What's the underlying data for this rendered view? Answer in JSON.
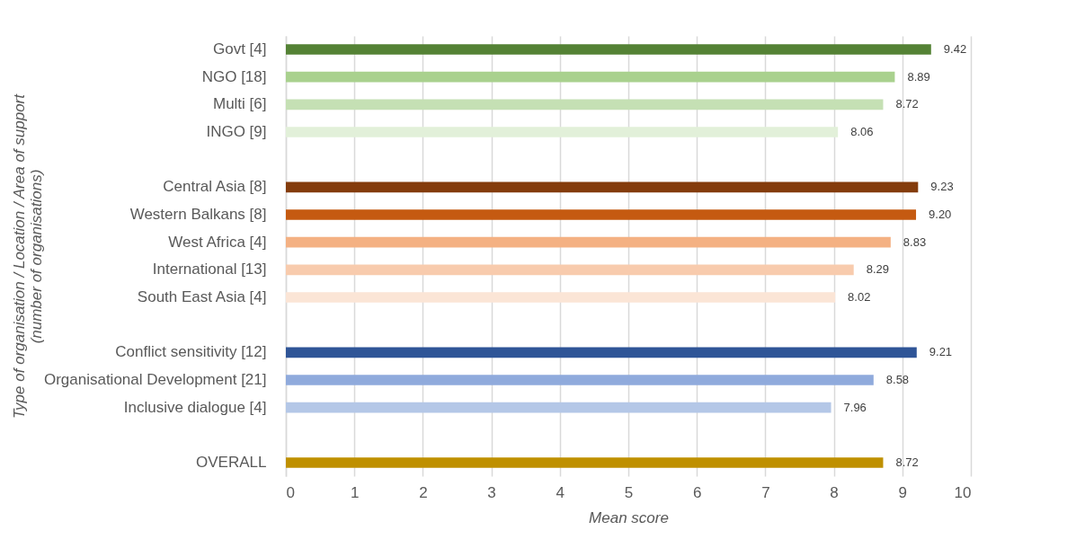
{
  "chart_data": {
    "type": "bar",
    "orientation": "horizontal",
    "xlabel": "Mean score",
    "ylabel": "Type of organisation / Location / Area of support\n(number of organisations)",
    "categories": [
      "Govt [4]",
      "NGO [18]",
      "Multi [6]",
      "INGO [9]",
      null,
      "Central Asia [8]",
      "Western Balkans [8]",
      "West Africa [4]",
      "International [13]",
      "South East Asia [4]",
      null,
      "Conflict sensitivity [12]",
      "Organisational Development [21]",
      "Inclusive dialogue [4]",
      null,
      "OVERALL"
    ],
    "values": [
      9.42,
      8.89,
      8.72,
      8.06,
      null,
      9.23,
      9.2,
      8.83,
      8.29,
      8.02,
      null,
      9.21,
      8.58,
      7.96,
      null,
      8.72
    ],
    "value_labels": [
      "9.42",
      "8.89",
      "8.72",
      "8.06",
      null,
      "9.23",
      "9.20",
      "8.83",
      "8.29",
      "8.02",
      null,
      "9.21",
      "8.58",
      "7.96",
      null,
      "8.72"
    ],
    "colors": [
      "#548235",
      "#a9d18e",
      "#c5e0b4",
      "#e2f0d9",
      null,
      "#843c0c",
      "#c55a11",
      "#f4b183",
      "#f8cbad",
      "#fbe5d6",
      null,
      "#2f5597",
      "#8faadc",
      "#b4c7e7",
      null,
      "#bf9000"
    ],
    "xlim": [
      0,
      10
    ],
    "xticks": [
      0,
      1,
      2,
      3,
      4,
      5,
      6,
      7,
      8,
      9,
      10
    ],
    "grid": "x"
  }
}
